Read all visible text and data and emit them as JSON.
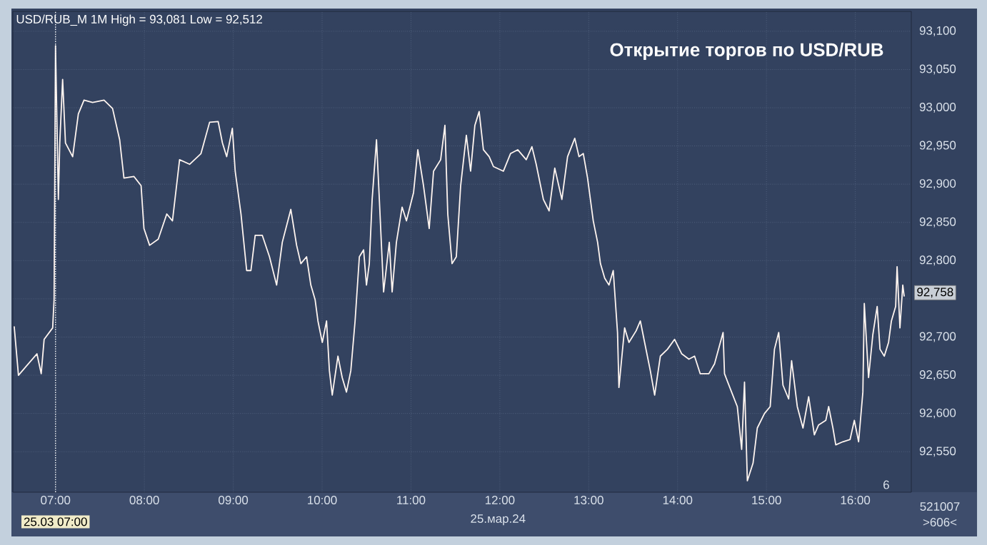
{
  "chart_data": {
    "type": "line",
    "title": "Открытие торгов по USD/RUB",
    "xlabel": "25.мар.24",
    "color": "#fff5f0",
    "x": [
      6.535,
      6.583,
      6.791,
      6.839,
      6.872,
      6.968,
      6.984,
      7.0,
      7.032,
      7.048,
      7.08,
      7.112,
      7.193,
      7.257,
      7.321,
      7.417,
      7.546,
      7.642,
      7.722,
      7.77,
      7.883,
      7.963,
      7.995,
      8.059,
      8.156,
      8.252,
      8.316,
      8.396,
      8.509,
      8.637,
      8.734,
      8.83,
      8.878,
      8.926,
      8.99,
      9.022,
      9.087,
      9.151,
      9.199,
      9.247,
      9.327,
      9.408,
      9.488,
      9.552,
      9.648,
      9.713,
      9.761,
      9.825,
      9.873,
      9.921,
      9.953,
      10.002,
      10.05,
      10.082,
      10.114,
      10.178,
      10.226,
      10.274,
      10.323,
      10.371,
      10.419,
      10.467,
      10.499,
      10.531,
      10.563,
      10.612,
      10.644,
      10.692,
      10.756,
      10.788,
      10.836,
      10.9,
      10.949,
      11.029,
      11.077,
      11.141,
      11.205,
      11.254,
      11.334,
      11.382,
      11.414,
      11.462,
      11.51,
      11.559,
      11.623,
      11.671,
      11.719,
      11.767,
      11.815,
      11.88,
      11.928,
      12.04,
      12.12,
      12.201,
      12.297,
      12.361,
      12.409,
      12.49,
      12.554,
      12.618,
      12.698,
      12.762,
      12.843,
      12.891,
      12.939,
      12.987,
      13.051,
      13.1,
      13.132,
      13.18,
      13.228,
      13.276,
      13.324,
      13.34,
      13.404,
      13.453,
      13.533,
      13.581,
      13.629,
      13.693,
      13.742,
      13.806,
      13.886,
      13.966,
      14.047,
      14.127,
      14.191,
      14.255,
      14.352,
      14.416,
      14.512,
      14.528,
      14.608,
      14.672,
      14.721,
      14.753,
      14.785,
      14.849,
      14.897,
      14.978,
      15.042,
      15.09,
      15.138,
      15.186,
      15.25,
      15.283,
      15.347,
      15.411,
      15.475,
      15.539,
      15.587,
      15.668,
      15.7,
      15.748,
      15.78,
      15.86,
      15.941,
      15.989,
      16.037,
      16.085,
      16.101,
      16.149,
      16.197,
      16.246,
      16.278,
      16.326,
      16.374,
      16.406,
      16.454,
      16.47,
      16.502,
      16.534,
      16.55
    ],
    "values": [
      92714,
      92650,
      92678,
      92652,
      92697,
      92712,
      92749,
      93081,
      92880,
      92954,
      93037,
      92954,
      92936,
      92992,
      93010,
      93007,
      93010,
      92999,
      92958,
      92908,
      92910,
      92898,
      92842,
      92820,
      92828,
      92861,
      92852,
      92932,
      92926,
      92940,
      92981,
      92982,
      92954,
      92936,
      92973,
      92917,
      92861,
      92787,
      92787,
      92833,
      92833,
      92805,
      92768,
      92824,
      92867,
      92820,
      92796,
      92805,
      92768,
      92749,
      92721,
      92693,
      92721,
      92656,
      92624,
      92675,
      92647,
      92628,
      92656,
      92721,
      92805,
      92814,
      92768,
      92796,
      92880,
      92958,
      92880,
      92759,
      92824,
      92759,
      92824,
      92870,
      92852,
      92889,
      92945,
      92898,
      92842,
      92917,
      92932,
      92977,
      92861,
      92796,
      92805,
      92898,
      92964,
      92917,
      92977,
      92995,
      92945,
      92936,
      92923,
      92917,
      92940,
      92945,
      92932,
      92949,
      92926,
      92880,
      92865,
      92921,
      92880,
      92936,
      92960,
      92936,
      92940,
      92908,
      92852,
      92824,
      92796,
      92777,
      92768,
      92787,
      92706,
      92634,
      92712,
      92693,
      92708,
      92721,
      92693,
      92656,
      92624,
      92675,
      92684,
      92697,
      92678,
      92671,
      92675,
      92652,
      92652,
      92665,
      92706,
      92652,
      92628,
      92609,
      92553,
      92641,
      92512,
      92535,
      92581,
      92600,
      92609,
      92684,
      92706,
      92637,
      92619,
      92669,
      92609,
      92581,
      92622,
      92572,
      92585,
      92591,
      92609,
      92581,
      92559,
      92563,
      92566,
      92591,
      92563,
      92628,
      92744,
      92647,
      92703,
      92740,
      92684,
      92675,
      92693,
      92721,
      92740,
      92792,
      92712,
      92768,
      92753
    ],
    "xlim": [
      6.52,
      16.63
    ],
    "ylim": [
      92497,
      93126
    ],
    "xticks": [
      {
        "value": 7,
        "label": "07:00"
      },
      {
        "value": 8,
        "label": "08:00"
      },
      {
        "value": 9,
        "label": "09:00"
      },
      {
        "value": 10,
        "label": "10:00"
      },
      {
        "value": 11,
        "label": "11:00"
      },
      {
        "value": 12,
        "label": "12:00"
      },
      {
        "value": 13,
        "label": "13:00"
      },
      {
        "value": 14,
        "label": "14:00"
      },
      {
        "value": 15,
        "label": "15:00"
      },
      {
        "value": 16,
        "label": "16:00"
      }
    ],
    "yticks": [
      {
        "value": 92550,
        "label": "92,550"
      },
      {
        "value": 92600,
        "label": "92,600"
      },
      {
        "value": 92650,
        "label": "92,650"
      },
      {
        "value": 92700,
        "label": "92,700"
      },
      {
        "value": 92750,
        "label": null
      },
      {
        "value": 92800,
        "label": "92,800"
      },
      {
        "value": 92850,
        "label": "92,850"
      },
      {
        "value": 92900,
        "label": "92,900"
      },
      {
        "value": 92950,
        "label": "92,950"
      },
      {
        "value": 93000,
        "label": "93,000"
      },
      {
        "value": 93050,
        "label": "93,050"
      },
      {
        "value": 93100,
        "label": "93,100"
      }
    ],
    "grid": true,
    "ref_lines": [
      {
        "axis": "x",
        "value": 7,
        "label": "25.03 07:00",
        "line_style": "dotted",
        "color": "#ffffff"
      }
    ],
    "annotations": [
      "USD/RUB_M 1M High = 93,081 Low = 92,512",
      {
        "text": "92,758",
        "x": 16.55,
        "y": 92758
      },
      "6",
      "521007",
      ">606<"
    ]
  }
}
